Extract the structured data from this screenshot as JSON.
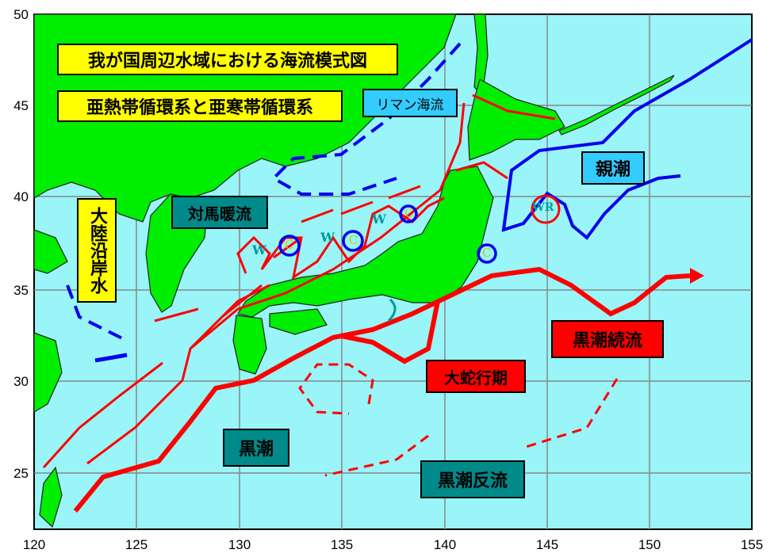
{
  "map": {
    "x_ticks": [
      "120",
      "125",
      "130",
      "135",
      "140",
      "145",
      "150",
      "155"
    ],
    "y_ticks": [
      "50",
      "45",
      "40",
      "35",
      "30",
      "25"
    ],
    "colors": {
      "sea": "#99f5f8",
      "land": "#00ee00",
      "warm_current": "#ff0000",
      "cold_current": "#0000ee",
      "grid": "#888888"
    }
  },
  "labels": {
    "title": "我が国周辺水域における海流模式図",
    "subtitle": "亜熱帯循環系と亜寒帯循環系",
    "liman": "リマン海流",
    "oyashio": "親潮",
    "tsushima": "対馬暖流",
    "continental": "大陸沿岸水",
    "extension": "黒潮続流",
    "meander": "大蛇行期",
    "kuroshio": "黒潮",
    "counter": "黒潮反流"
  },
  "eddies": {
    "warm": "W",
    "cold": "C",
    "warm_ring": "WR"
  }
}
